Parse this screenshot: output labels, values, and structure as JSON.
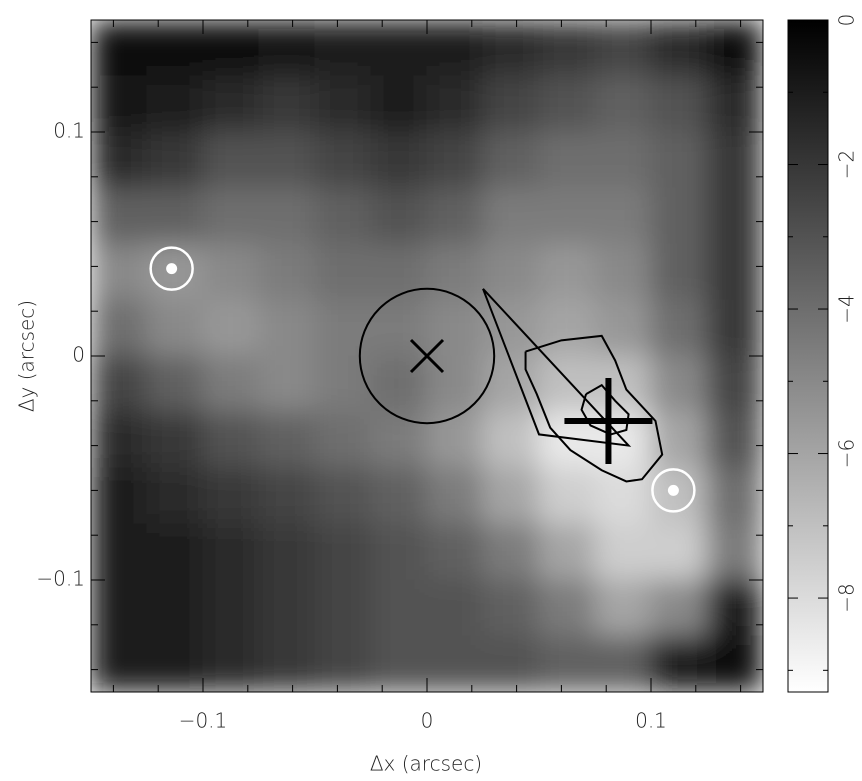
{
  "chart_data": {
    "type": "heatmap",
    "xlabel": "Δx (arcsec)",
    "ylabel": "Δy (arcsec)",
    "xlim": [
      -0.15,
      0.15
    ],
    "ylim": [
      -0.15,
      0.15
    ],
    "xticks": [
      {
        "value": -0.1,
        "label": "−0.1"
      },
      0,
      0.1
    ],
    "yticks": [
      {
        "value": -0.1,
        "label": "−0.1"
      },
      0,
      0.1
    ],
    "xminorticks": [
      -0.14,
      -0.12,
      -0.08,
      -0.06,
      -0.04,
      -0.02,
      0.02,
      0.04,
      0.06,
      0.08,
      0.12,
      0.14
    ],
    "yminorticks": [
      -0.14,
      -0.12,
      -0.08,
      -0.06,
      -0.04,
      -0.02,
      0.02,
      0.04,
      0.06,
      0.08,
      0.12,
      0.14
    ],
    "z": [
      [
        -0.5,
        -0.5,
        -0.5,
        -0.8,
        -1,
        -1,
        -1,
        -1.5,
        -2,
        -2.5,
        -1.5,
        -0.5
      ],
      [
        -0.8,
        -1,
        -1.5,
        -2,
        -1.5,
        -1,
        -1.5,
        -2.5,
        -3,
        -3.5,
        -3,
        -1.5
      ],
      [
        -1.5,
        -2,
        -3,
        -3,
        -2.5,
        -2,
        -2.5,
        -3.5,
        -4,
        -4,
        -3.5,
        -2
      ],
      [
        -3.5,
        -3.5,
        -4,
        -4,
        -3.5,
        -3,
        -3.5,
        -4.5,
        -4.5,
        -4.5,
        -3.5,
        -2
      ],
      [
        -5,
        -5.5,
        -5,
        -4.5,
        -4,
        -4,
        -4.5,
        -5,
        -5.5,
        -5,
        -3.5,
        -2
      ],
      [
        -4,
        -5,
        -5.5,
        -5,
        -4.5,
        -4.5,
        -5,
        -5.5,
        -6,
        -5.5,
        -4,
        -2
      ],
      [
        -2.5,
        -3.5,
        -4.5,
        -5,
        -4.5,
        -4,
        -5,
        -6,
        -7,
        -7,
        -5,
        -2.5
      ],
      [
        -1.5,
        -2,
        -3,
        -3.5,
        -4,
        -4.5,
        -5.5,
        -7,
        -8.5,
        -8.5,
        -6,
        -3
      ],
      [
        -1,
        -1.5,
        -2,
        -2.5,
        -3,
        -3.5,
        -4.5,
        -6,
        -7.5,
        -8,
        -7,
        -4
      ],
      [
        -1,
        -1,
        -1.5,
        -2,
        -2.5,
        -3,
        -3.5,
        -4.5,
        -6,
        -7.5,
        -7.5,
        -4.5
      ],
      [
        -1,
        -1,
        -1.5,
        -2,
        -2.5,
        -3,
        -3,
        -3.5,
        -4.5,
        -6,
        -5,
        -1
      ],
      [
        -1,
        -1,
        -1.5,
        -2,
        -2.5,
        -3,
        -3,
        -3,
        -3.5,
        -3.5,
        -1,
        -0.3
      ]
    ],
    "clim": [
      -9.3,
      0
    ],
    "cticks": [
      {
        "value": -8,
        "label": "−8"
      },
      {
        "value": -6,
        "label": "−6"
      },
      {
        "value": -4,
        "label": "−4"
      },
      {
        "value": -2,
        "label": "−2"
      },
      0
    ],
    "cminorticks": [
      -9,
      -7,
      -5,
      -3,
      -1
    ],
    "overlays": {
      "circle": {
        "x": 0,
        "y": 0,
        "radius": 0.03
      },
      "x_marker": {
        "x": 0,
        "y": 0
      },
      "cross": {
        "x": 0.081,
        "y": -0.029
      },
      "sources": {
        "x": [
          -0.114,
          0.11
        ],
        "y": [
          0.039,
          -0.06
        ]
      },
      "polygon": {
        "x": [
          0.025,
          0.05,
          0.09,
          0.025
        ],
        "y": [
          0.03,
          -0.035,
          -0.04,
          0.03
        ]
      },
      "contours": [
        {
          "x": [
            0.044,
            0.06,
            0.078,
            0.084,
            0.089,
            0.102,
            0.105,
            0.096,
            0.089,
            0.078,
            0.064,
            0.055,
            0.049,
            0.044,
            0.044
          ],
          "y": [
            0.002,
            0.007,
            0.009,
            -0.002,
            -0.015,
            -0.029,
            -0.044,
            -0.055,
            -0.056,
            -0.051,
            -0.042,
            -0.032,
            -0.017,
            -0.006,
            0.002
          ]
        },
        {
          "x": [
            0.071,
            0.078,
            0.084,
            0.09,
            0.089,
            0.082,
            0.073,
            0.069,
            0.071
          ],
          "y": [
            -0.017,
            -0.013,
            -0.02,
            -0.026,
            -0.033,
            -0.035,
            -0.031,
            -0.024,
            -0.017
          ]
        }
      ]
    }
  }
}
